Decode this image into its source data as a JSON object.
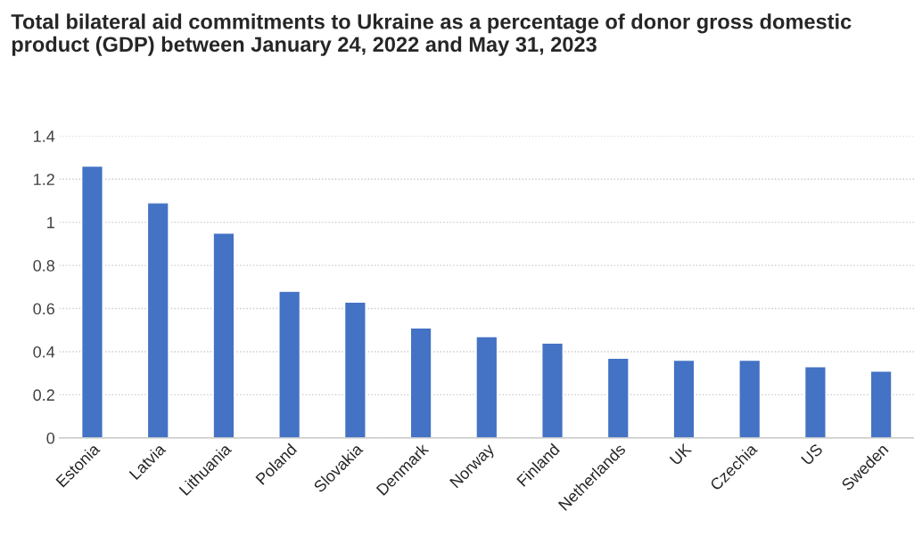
{
  "chart_data": {
    "type": "bar",
    "title": "Total bilateral aid commitments to Ukraine as a percentage of donor gross domestic product (GDP) between January 24, 2022 and May 31, 2023",
    "categories": [
      "Estonia",
      "Latvia",
      "Lithuania",
      "Poland",
      "Slovakia",
      "Denmark",
      "Norway",
      "Finland",
      "Netherlands",
      "UK",
      "Czechia",
      "US",
      "Sweden"
    ],
    "values": [
      1.26,
      1.09,
      0.95,
      0.68,
      0.63,
      0.51,
      0.47,
      0.44,
      0.37,
      0.36,
      0.36,
      0.33,
      0.31
    ],
    "color": "#4472c4",
    "ylim": [
      0,
      1.4
    ],
    "yticks": [
      0,
      0.2,
      0.4,
      0.6,
      0.8,
      1,
      1.2,
      1.4
    ],
    "grid": "y"
  }
}
